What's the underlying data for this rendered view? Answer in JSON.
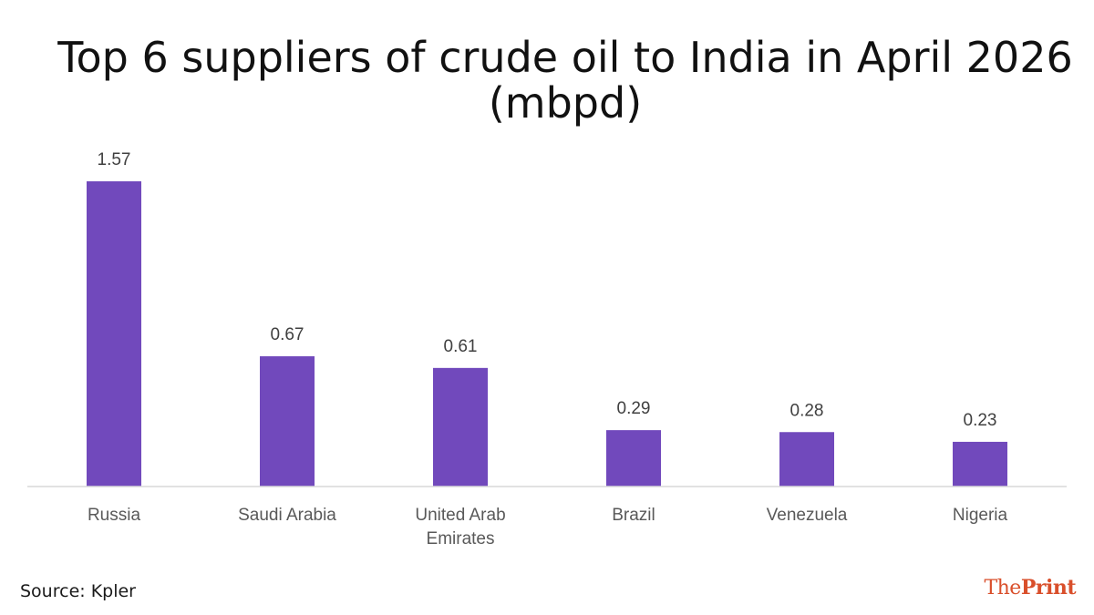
{
  "chart_data": {
    "type": "bar",
    "title": "Top 6 suppliers of crude oil to India in April 2026\n(mbpd)",
    "categories": [
      [
        "Russia"
      ],
      [
        "Saudi Arabia"
      ],
      [
        "United Arab",
        "Emirates"
      ],
      [
        "Brazil"
      ],
      [
        "Venezuela"
      ],
      [
        "Nigeria"
      ]
    ],
    "values": [
      1.57,
      0.67,
      0.61,
      0.29,
      0.28,
      0.23
    ],
    "value_labels": [
      "1.57",
      "0.67",
      "0.61",
      "0.29",
      "0.28",
      "0.23"
    ],
    "ylim": [
      0,
      1.57
    ],
    "grid": false,
    "legend": "none",
    "bar_color": "#7149bc",
    "axis_color": "#d9d9d9"
  },
  "source": "Source: Kpler",
  "brand": {
    "part1": "The",
    "part2": "Print",
    "color": "#d94f2b"
  }
}
